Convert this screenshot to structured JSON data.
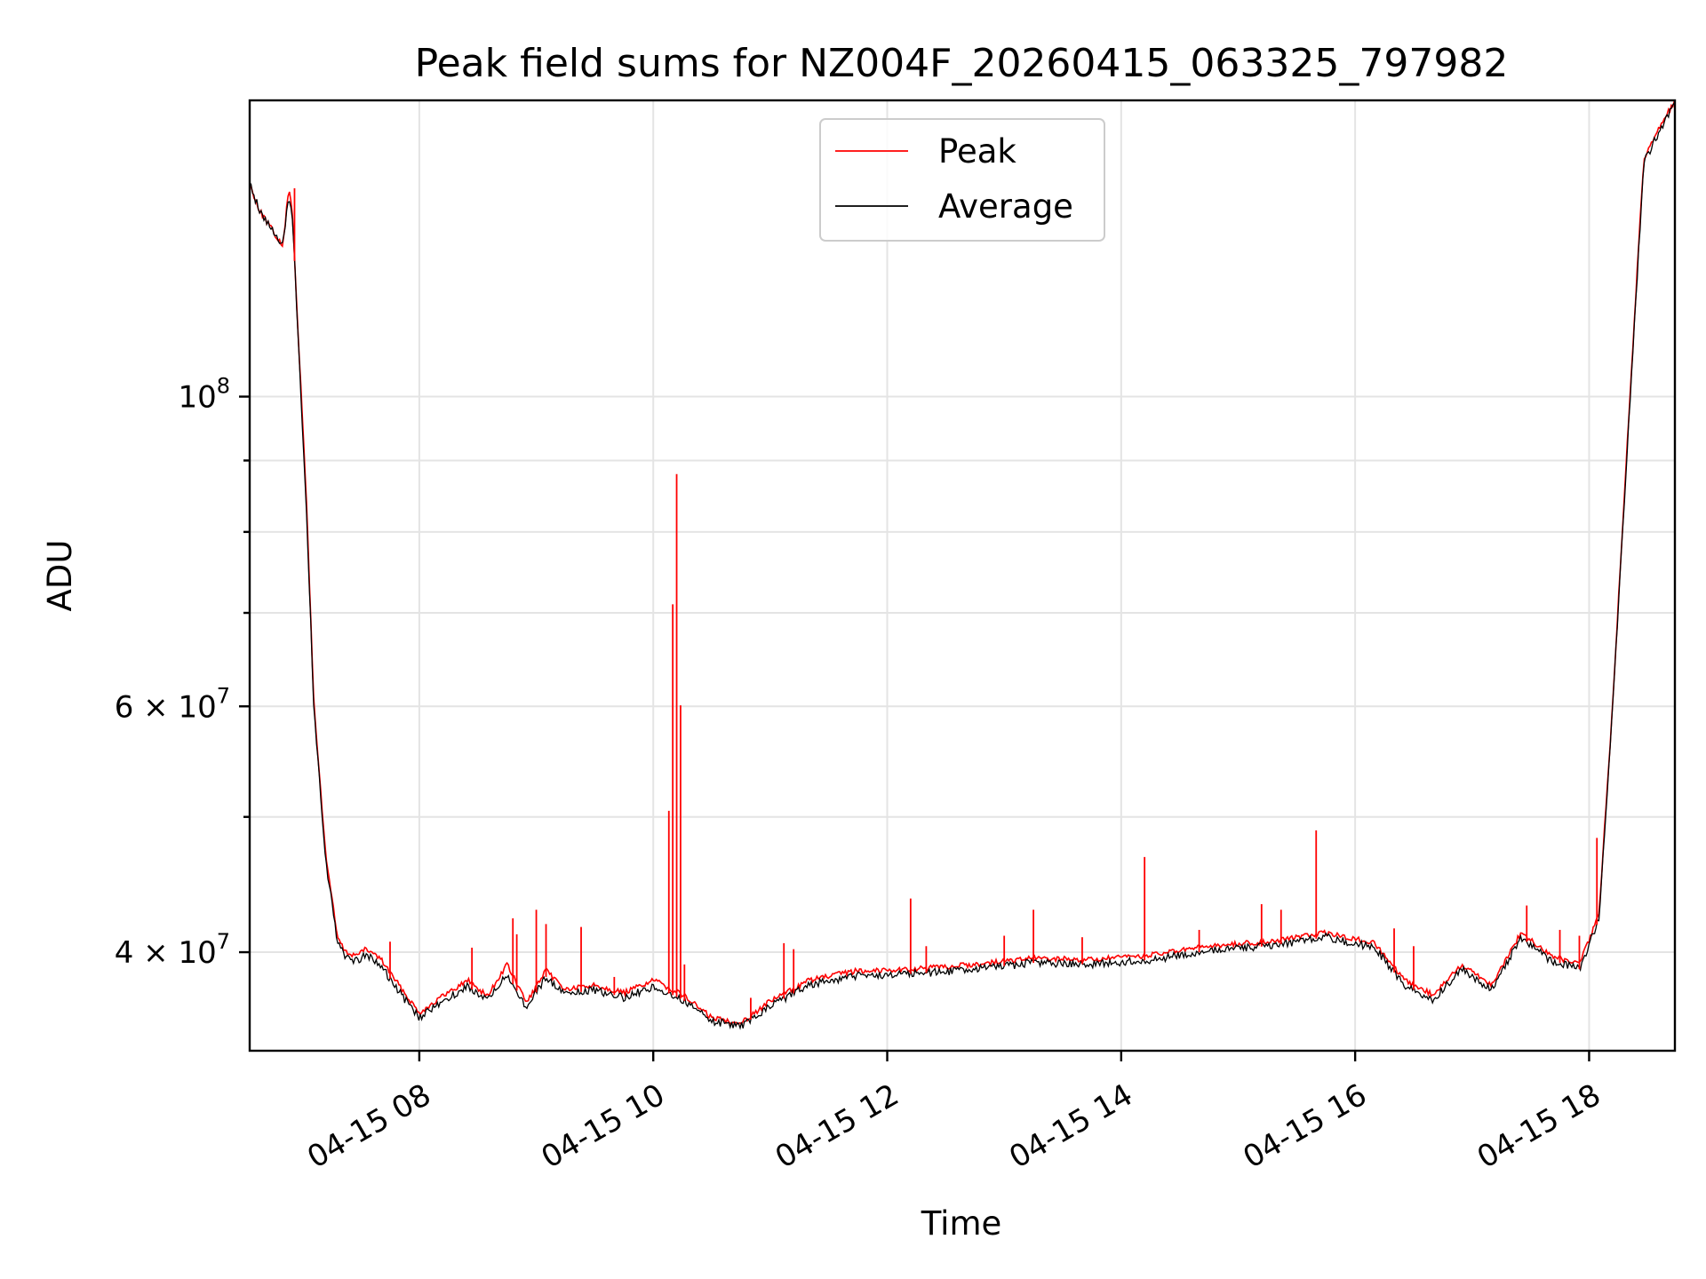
{
  "chart_data": {
    "type": "line",
    "title": "Peak field sums for NZ004F_20260415_063325_797982",
    "xlabel": "Time",
    "ylabel": "ADU",
    "yscale": "log",
    "xlim": [
      "2026-04-15 06:33",
      "2026-04-15 18:44"
    ],
    "ylim": [
      34000000,
      163000000
    ],
    "grid": true,
    "legend_position": "top-center",
    "x_ticks": [
      {
        "value": "2026-04-15 08:00",
        "label": "04-15 08"
      },
      {
        "value": "2026-04-15 10:00",
        "label": "04-15 10"
      },
      {
        "value": "2026-04-15 12:00",
        "label": "04-15 12"
      },
      {
        "value": "2026-04-15 14:00",
        "label": "04-15 14"
      },
      {
        "value": "2026-04-15 16:00",
        "label": "04-15 16"
      },
      {
        "value": "2026-04-15 18:00",
        "label": "04-15 18"
      }
    ],
    "y_ticks": [
      {
        "value": 100000000,
        "base": "10",
        "exp": "8"
      },
      {
        "value": 60000000,
        "base": "6 × 10",
        "exp": "7"
      },
      {
        "value": 40000000,
        "base": "4 × 10",
        "exp": "7"
      }
    ],
    "y_minor_ticks": [
      50000000,
      70000000,
      80000000,
      90000000
    ],
    "x": [
      "2026-04-15 06:33",
      "2026-04-15 06:38",
      "2026-04-15 06:44",
      "2026-04-15 06:50",
      "2026-04-15 06:53",
      "2026-04-15 06:55",
      "2026-04-15 06:58",
      "2026-04-15 07:02",
      "2026-04-15 07:06",
      "2026-04-15 07:12",
      "2026-04-15 07:18",
      "2026-04-15 07:22",
      "2026-04-15 07:27",
      "2026-04-15 07:33",
      "2026-04-15 07:40",
      "2026-04-15 07:50",
      "2026-04-15 08:00",
      "2026-04-15 08:12",
      "2026-04-15 08:25",
      "2026-04-15 08:35",
      "2026-04-15 08:45",
      "2026-04-15 08:55",
      "2026-04-15 09:05",
      "2026-04-15 09:15",
      "2026-04-15 09:30",
      "2026-04-15 09:45",
      "2026-04-15 10:00",
      "2026-04-15 10:15",
      "2026-04-15 10:30",
      "2026-04-15 10:45",
      "2026-04-15 11:00",
      "2026-04-15 11:20",
      "2026-04-15 11:45",
      "2026-04-15 12:15",
      "2026-04-15 12:45",
      "2026-04-15 13:15",
      "2026-04-15 13:45",
      "2026-04-15 14:15",
      "2026-04-15 14:45",
      "2026-04-15 15:15",
      "2026-04-15 15:45",
      "2026-04-15 16:10",
      "2026-04-15 16:25",
      "2026-04-15 16:40",
      "2026-04-15 16:55",
      "2026-04-15 17:10",
      "2026-04-15 17:25",
      "2026-04-15 17:40",
      "2026-04-15 17:55",
      "2026-04-15 18:05",
      "2026-04-15 18:12",
      "2026-04-15 18:20",
      "2026-04-15 18:28",
      "2026-04-15 18:35",
      "2026-04-15 18:44"
    ],
    "series": [
      {
        "name": "Peak",
        "color": "#ff0000",
        "values": [
          142000000,
          136000000,
          132000000,
          128000000,
          141000000,
          135000000,
          110000000,
          85000000,
          60000000,
          47000000,
          41000000,
          40000000,
          39800000,
          40200000,
          39600000,
          37800000,
          36200000,
          37200000,
          38200000,
          37200000,
          39200000,
          36800000,
          38800000,
          37600000,
          37900000,
          37400000,
          38200000,
          37300000,
          35900000,
          35600000,
          36900000,
          38200000,
          38800000,
          38900000,
          39200000,
          39600000,
          39500000,
          39800000,
          40400000,
          40700000,
          41300000,
          40600000,
          38200000,
          37300000,
          39200000,
          37900000,
          41300000,
          39800000,
          39200000,
          42500000,
          60000000,
          95000000,
          148000000,
          155000000,
          163000000
        ]
      },
      {
        "name": "Average",
        "color": "#000000",
        "values": [
          142000000,
          136000000,
          132000000,
          128000000,
          140000000,
          134000000,
          109000000,
          84000000,
          59500000,
          46500000,
          40700000,
          39600000,
          39400000,
          39800000,
          39200000,
          37400000,
          35900000,
          36900000,
          37800000,
          36900000,
          38600000,
          36500000,
          38400000,
          37300000,
          37600000,
          37100000,
          37800000,
          37000000,
          35700000,
          35400000,
          36600000,
          37900000,
          38500000,
          38600000,
          38900000,
          39300000,
          39200000,
          39500000,
          40100000,
          40400000,
          41000000,
          40300000,
          37900000,
          37000000,
          38900000,
          37600000,
          41000000,
          39500000,
          38900000,
          42200000,
          59500000,
          94000000,
          147000000,
          154000000,
          162000000
        ]
      }
    ],
    "peak_spikes": [
      {
        "x": "2026-04-15 06:56",
        "y": 141000000
      },
      {
        "x": "2026-04-15 07:45",
        "y": 40700000
      },
      {
        "x": "2026-04-15 08:27",
        "y": 40300000
      },
      {
        "x": "2026-04-15 08:48",
        "y": 42300000
      },
      {
        "x": "2026-04-15 08:50",
        "y": 41200000
      },
      {
        "x": "2026-04-15 09:00",
        "y": 42900000
      },
      {
        "x": "2026-04-15 09:05",
        "y": 41900000
      },
      {
        "x": "2026-04-15 09:23",
        "y": 41700000
      },
      {
        "x": "2026-04-15 09:40",
        "y": 38400000
      },
      {
        "x": "2026-04-15 10:08",
        "y": 50500000
      },
      {
        "x": "2026-04-15 10:10",
        "y": 71000000
      },
      {
        "x": "2026-04-15 10:12",
        "y": 88000000
      },
      {
        "x": "2026-04-15 10:14",
        "y": 60100000
      },
      {
        "x": "2026-04-15 10:16",
        "y": 39200000
      },
      {
        "x": "2026-04-15 10:50",
        "y": 37100000
      },
      {
        "x": "2026-04-15 11:07",
        "y": 40600000
      },
      {
        "x": "2026-04-15 11:12",
        "y": 40200000
      },
      {
        "x": "2026-04-15 12:12",
        "y": 43700000
      },
      {
        "x": "2026-04-15 12:20",
        "y": 40400000
      },
      {
        "x": "2026-04-15 13:00",
        "y": 41100000
      },
      {
        "x": "2026-04-15 13:15",
        "y": 42900000
      },
      {
        "x": "2026-04-15 13:40",
        "y": 41000000
      },
      {
        "x": "2026-04-15 14:12",
        "y": 46800000
      },
      {
        "x": "2026-04-15 14:40",
        "y": 41500000
      },
      {
        "x": "2026-04-15 15:12",
        "y": 43300000
      },
      {
        "x": "2026-04-15 15:22",
        "y": 42900000
      },
      {
        "x": "2026-04-15 15:40",
        "y": 48900000
      },
      {
        "x": "2026-04-15 16:20",
        "y": 41600000
      },
      {
        "x": "2026-04-15 16:30",
        "y": 40400000
      },
      {
        "x": "2026-04-15 17:28",
        "y": 43200000
      },
      {
        "x": "2026-04-15 17:45",
        "y": 41500000
      },
      {
        "x": "2026-04-15 17:55",
        "y": 41100000
      },
      {
        "x": "2026-04-15 18:04",
        "y": 48300000
      }
    ]
  }
}
